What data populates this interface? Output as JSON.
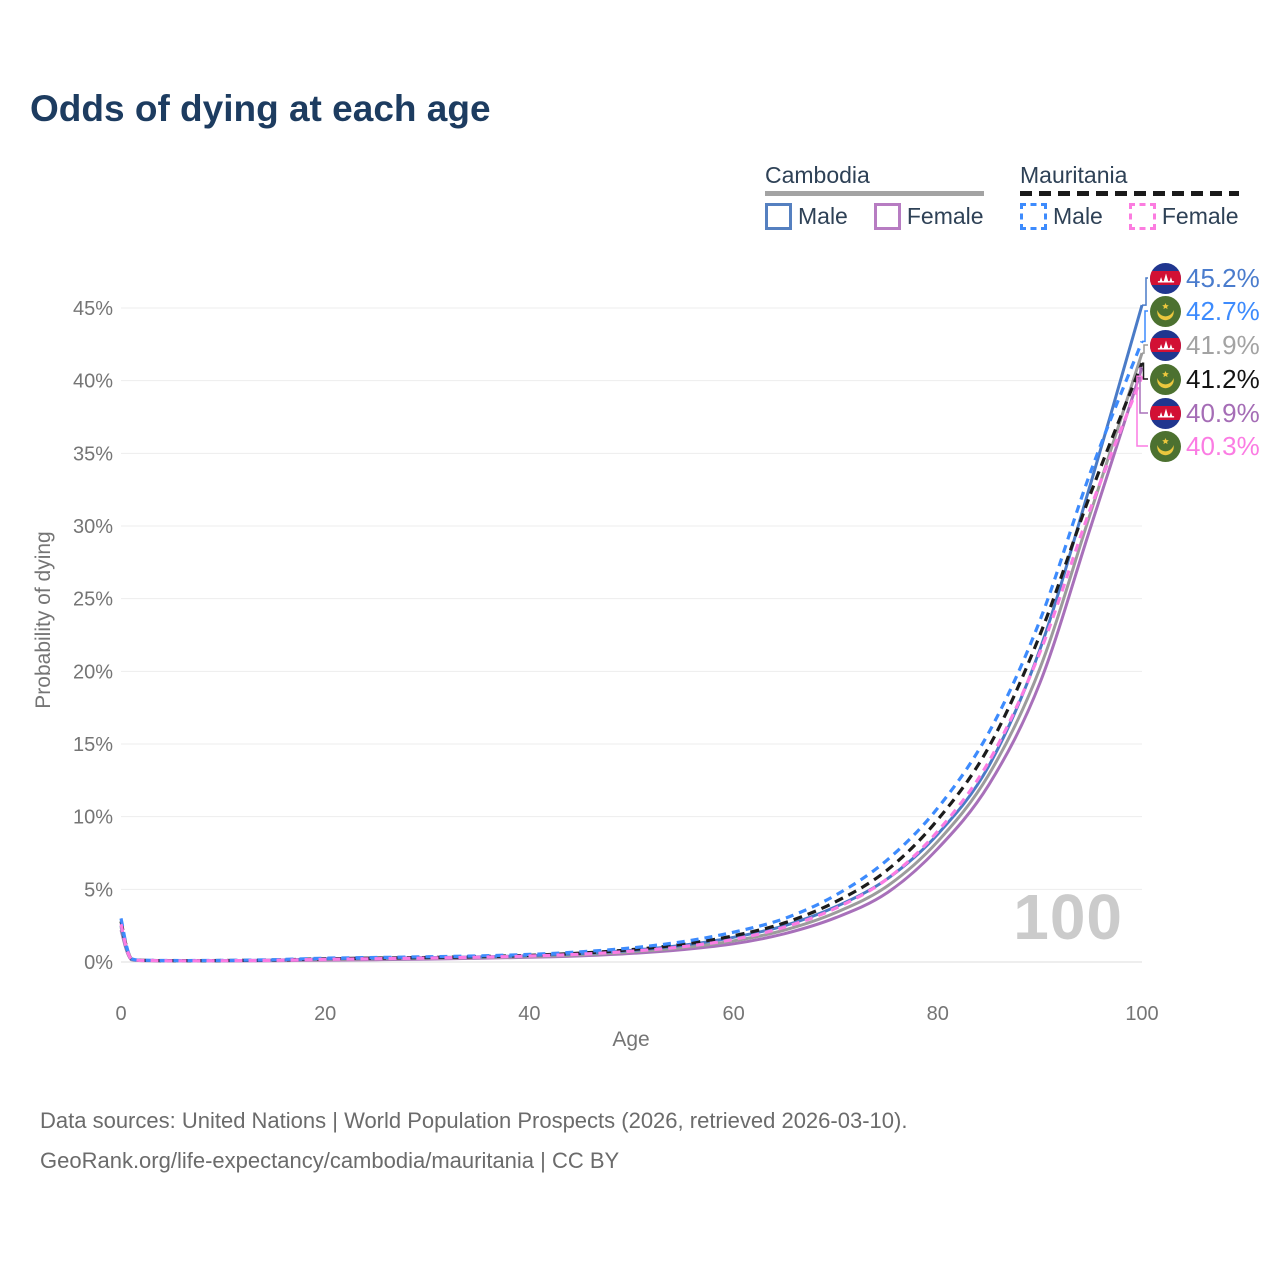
{
  "title": "Odds of dying at each age",
  "watermark": "100",
  "source": {
    "line1": "Data sources: United Nations | World Population Prospects (2026, retrieved 2026-03-10).",
    "line2": "GeoRank.org/life-expectancy/cambodia/mauritania | CC BY"
  },
  "colors": {
    "title_text": "#1d3c60",
    "legend_text": "#2e4156",
    "axis_text": "#757575",
    "gridline": "#ededed",
    "zero_line": "#dcdcdc",
    "watermark": "#cbcbcb",
    "source_text": "#6b6b6b",
    "flag_cambodia_blue": "#20368f",
    "flag_cambodia_red": "#d21034",
    "flag_mauritania_green": "#4c7130",
    "flag_mauritania_yellow": "#ecc73e"
  },
  "legend": {
    "groups": [
      {
        "country": "Cambodia",
        "line_style": "solid",
        "underline_color": "#a3a3a3",
        "items": [
          {
            "label": "Male",
            "color": "#5580c0"
          },
          {
            "label": "Female",
            "color": "#b77cc2"
          }
        ]
      },
      {
        "country": "Mauritania",
        "line_style": "dashed",
        "underline_color": "#1a1a1a",
        "items": [
          {
            "label": "Male",
            "color": "#3d8bfd"
          },
          {
            "label": "Female",
            "color": "#fc7ce0"
          }
        ]
      }
    ]
  },
  "chart_data": {
    "type": "line",
    "title": "Odds of dying at each age",
    "xlabel": "Age",
    "ylabel": "Probability of dying",
    "xlim": [
      0,
      100
    ],
    "ylim": [
      0,
      45
    ],
    "grid": true,
    "x_ticks": [
      0,
      20,
      40,
      60,
      80,
      100
    ],
    "y_ticks": [
      0,
      5,
      10,
      15,
      20,
      25,
      30,
      35,
      40,
      45
    ],
    "y_tick_labels": [
      "0%",
      "5%",
      "10%",
      "15%",
      "20%",
      "25%",
      "30%",
      "35%",
      "40%",
      "45%"
    ],
    "ages": [
      0,
      1,
      3,
      5,
      10,
      15,
      20,
      25,
      30,
      35,
      40,
      45,
      50,
      55,
      60,
      65,
      70,
      75,
      80,
      85,
      90,
      95,
      100
    ],
    "series": [
      {
        "id": "cambodia-male",
        "country": "Cambodia",
        "sex": "Male",
        "style": "solid",
        "color": "#4a7bc7",
        "label_color": "#4a7ccd",
        "end_label": "45.2%",
        "values": [
          2.5,
          0.2,
          0.1,
          0.08,
          0.09,
          0.13,
          0.22,
          0.27,
          0.3,
          0.35,
          0.44,
          0.58,
          0.8,
          1.15,
          1.7,
          2.5,
          3.8,
          5.7,
          8.8,
          13.5,
          21.5,
          33.0,
          45.2
        ]
      },
      {
        "id": "mauritania-male",
        "country": "Mauritania",
        "sex": "Male",
        "style": "dashed",
        "color": "#3d8bfd",
        "label_color": "#3d8bfd",
        "end_label": "42.7%",
        "values": [
          3.0,
          0.24,
          0.12,
          0.1,
          0.11,
          0.16,
          0.26,
          0.31,
          0.36,
          0.42,
          0.52,
          0.7,
          0.97,
          1.4,
          2.05,
          3.0,
          4.6,
          7.0,
          10.6,
          15.8,
          23.5,
          33.8,
          42.7
        ]
      },
      {
        "id": "cambodia-both",
        "country": "Cambodia",
        "sex": "Both sexes",
        "style": "solid",
        "color": "#9c9c9c",
        "label_color": "#a3a3a3",
        "end_label": "41.9%",
        "values": [
          2.4,
          0.18,
          0.09,
          0.075,
          0.08,
          0.11,
          0.17,
          0.21,
          0.25,
          0.3,
          0.37,
          0.49,
          0.69,
          0.98,
          1.45,
          2.2,
          3.4,
          5.2,
          8.3,
          12.9,
          20.2,
          31.0,
          41.9
        ]
      },
      {
        "id": "mauritania-both",
        "country": "Mauritania",
        "sex": "Both sexes",
        "style": "dashed",
        "color": "#1c1c1c",
        "label_color": "#141414",
        "end_label": "41.2%",
        "values": [
          2.8,
          0.22,
          0.11,
          0.09,
          0.1,
          0.14,
          0.22,
          0.27,
          0.31,
          0.37,
          0.46,
          0.61,
          0.85,
          1.22,
          1.8,
          2.7,
          4.15,
          6.3,
          9.8,
          14.8,
          22.5,
          32.3,
          41.2
        ]
      },
      {
        "id": "cambodia-female",
        "country": "Cambodia",
        "sex": "Female",
        "style": "solid",
        "color": "#a870ba",
        "label_color": "#a56db6",
        "end_label": "40.9%",
        "values": [
          2.2,
          0.16,
          0.08,
          0.07,
          0.07,
          0.09,
          0.13,
          0.16,
          0.2,
          0.26,
          0.32,
          0.42,
          0.59,
          0.85,
          1.25,
          1.95,
          3.05,
          4.75,
          7.8,
          12.2,
          19.2,
          30.0,
          40.9
        ]
      },
      {
        "id": "mauritania-female",
        "country": "Mauritania",
        "sex": "Female",
        "style": "dashed",
        "color": "#fb7ce3",
        "label_color": "#fb7ce3",
        "end_label": "40.3%",
        "values": [
          2.6,
          0.2,
          0.1,
          0.085,
          0.09,
          0.12,
          0.18,
          0.23,
          0.27,
          0.33,
          0.41,
          0.54,
          0.74,
          1.05,
          1.55,
          2.4,
          3.7,
          5.7,
          9.0,
          13.8,
          21.3,
          31.3,
          40.3
        ]
      }
    ]
  }
}
